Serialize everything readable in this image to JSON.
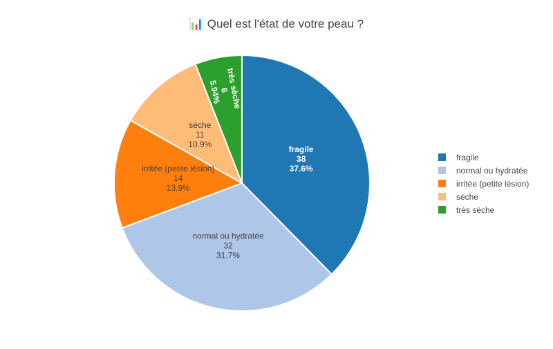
{
  "title": "📊 Quel est l'état de votre peau ?",
  "chart_data": {
    "type": "pie",
    "title": "📊 Quel est l'état de votre peau ?",
    "categories": [
      "fragile",
      "normal ou hydratée",
      "irritée (petite lésion)",
      "sèche",
      "très sèche"
    ],
    "values": [
      38,
      32,
      14,
      11,
      6
    ],
    "percent_labels": [
      "37.6%",
      "31.7%",
      "13.9%",
      "10.9%",
      "5.94%"
    ],
    "colors": [
      "#1f77b4",
      "#aec7e8",
      "#ff7f0e",
      "#ffbb78",
      "#2ca02c"
    ],
    "label_colors": [
      "#ffffff",
      "#444444",
      "#444444",
      "#444444",
      "#ffffff"
    ],
    "legend_position": "right",
    "direction": "clockwise",
    "start": "top"
  }
}
